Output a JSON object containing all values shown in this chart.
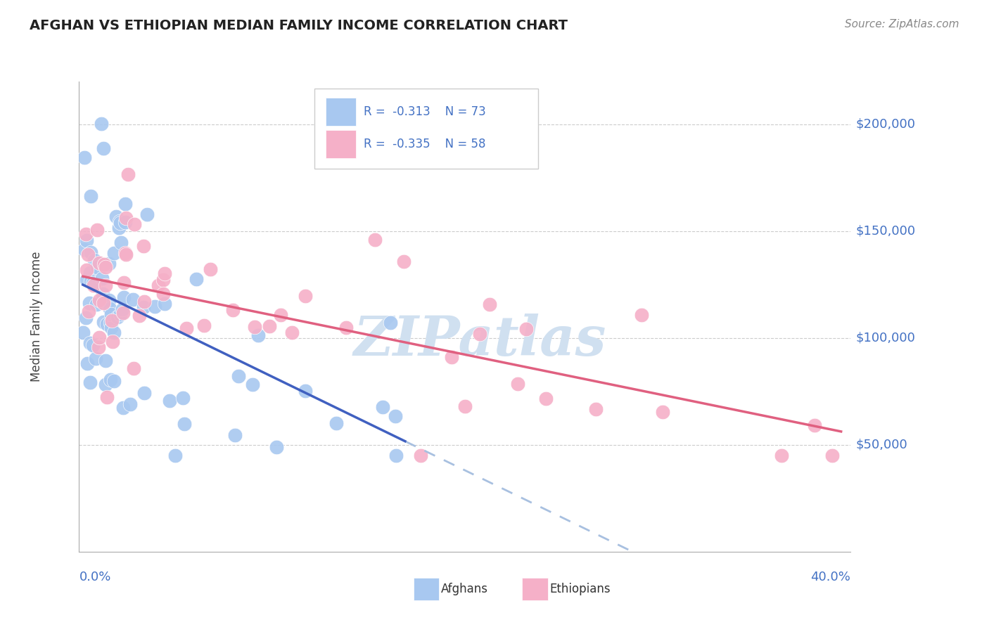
{
  "title": "AFGHAN VS ETHIOPIAN MEDIAN FAMILY INCOME CORRELATION CHART",
  "source": "Source: ZipAtlas.com",
  "ylabel": "Median Family Income",
  "ytick_labels": [
    "$50,000",
    "$100,000",
    "$150,000",
    "$200,000"
  ],
  "ytick_values": [
    50000,
    100000,
    150000,
    200000
  ],
  "afghan_color": "#a8c8f0",
  "ethiopian_color": "#f5b0c8",
  "afghan_line_color": "#4060c0",
  "ethiopian_line_color": "#e06080",
  "dashed_line_color": "#a8c0e0",
  "watermark_color": "#d0e0f0",
  "legend_text_color": "#4472c4",
  "ytick_color": "#4472c4",
  "xtick_color": "#4472c4",
  "title_color": "#222222",
  "source_color": "#888888",
  "ylabel_color": "#444444",
  "grid_color": "#cccccc",
  "spine_color": "#aaaaaa",
  "legend_r_afghan": "R =  -0.313",
  "legend_n_afghan": "N = 73",
  "legend_r_ethiopian": "R =  -0.335",
  "legend_n_ethiopian": "N = 58",
  "bottom_legend_afghans": "Afghans",
  "bottom_legend_ethiopians": "Ethiopians",
  "xlim_data": 0.4,
  "ylim_max": 220000,
  "afghan_seed": 12,
  "ethiopian_seed": 34
}
